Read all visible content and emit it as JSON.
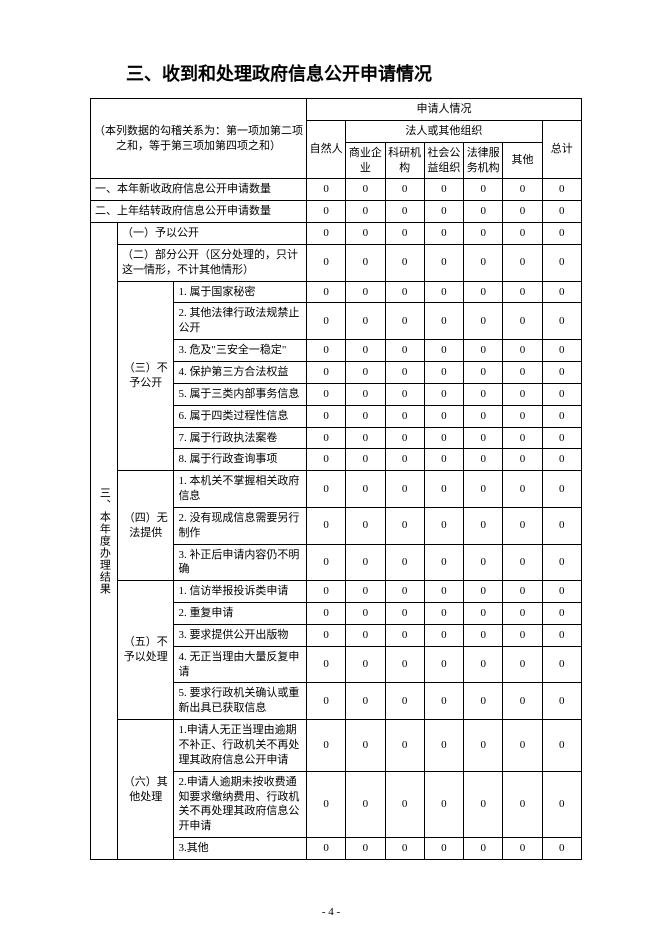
{
  "title": "三、收到和处理政府信息公开申请情况",
  "note": "（本列数据的勾稽关系为：第一项加第二项之和，等于第三项加第四项之和）",
  "header": {
    "applicant": "申请人情况",
    "natural": "自然人",
    "legal_group": "法人或其他组织",
    "legal_cols": [
      "商业企业",
      "科研机构",
      "社会公益组织",
      "法律服务机构",
      "其他"
    ],
    "total": "总计"
  },
  "row1": "一、本年新收政府信息公开申请数量",
  "row2": "二、上年结转政府信息公开申请数量",
  "section3_label": "三、本年度办理结果",
  "s3_1": "（一）予以公开",
  "s3_2": "（二）部分公开（区分处理的，只计这一情形，不计其他情形）",
  "s3_3_label": "（三）不予公开",
  "s3_3": [
    "1. 属于国家秘密",
    "2. 其他法律行政法规禁止公开",
    "3. 危及\"三安全一稳定\"",
    "4. 保护第三方合法权益",
    "5. 属于三类内部事务信息",
    "6. 属于四类过程性信息",
    "7. 属于行政执法案卷",
    "8. 属于行政查询事项"
  ],
  "s3_4_label": "（四）无法提供",
  "s3_4": [
    "1. 本机关不掌握相关政府信息",
    "2. 没有现成信息需要另行制作",
    "3. 补正后申请内容仍不明确"
  ],
  "s3_5_label": "（五）不予以处理",
  "s3_5": [
    "1. 信访举报投诉类申请",
    "2. 重复申请",
    "3. 要求提供公开出版物",
    "4. 无正当理由大量反复申请",
    "5. 要求行政机关确认或重新出具已获取信息"
  ],
  "s3_6_label": "（六）其他处理",
  "s3_6": [
    "1.申请人无正当理由逾期不补正、行政机关不再处理其政府信息公开申请",
    "2.申请人逾期未按收费通知要求缴纳费用、行政机关不再处理其政府信息公开申请",
    "3.其他"
  ],
  "zero": "0",
  "page_num": "- 4 -",
  "colors": {
    "text": "#000000",
    "bg": "#ffffff",
    "border": "#000000"
  },
  "font_sizes": {
    "title": 18,
    "body": 11
  }
}
